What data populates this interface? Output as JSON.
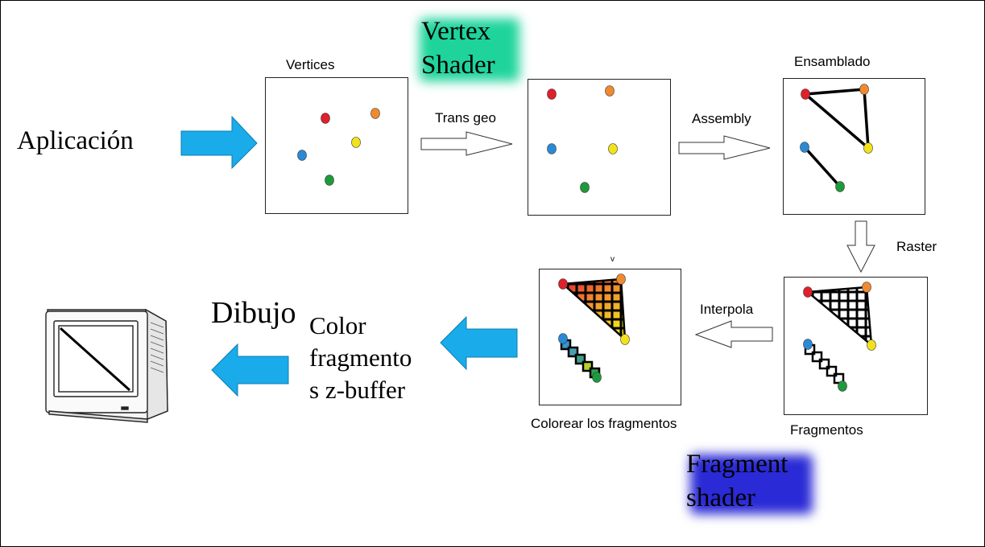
{
  "labels": {
    "aplicacion": "Aplicación",
    "vertices": "Vertices",
    "vertex_shader_line1": "Vertex",
    "vertex_shader_line2": "Shader",
    "trans_geo": "Trans geo",
    "assembly": "Assembly",
    "ensamblado": "Ensamblado",
    "raster": "Raster",
    "interpola": "Interpola",
    "fragmentos": "Fragmentos",
    "colorear": "Colorear los fragmentos",
    "tick_mark": "v",
    "fragment_shader_line1": "Fragment",
    "fragment_shader_line2": "shader",
    "dibujo": "Dibujo",
    "color_line1": "Color",
    "color_line2": "fragmento",
    "color_line3": "s z-buffer"
  },
  "colors": {
    "vertex_shader_highlight": "#1ed49a",
    "fragment_shader_highlight": "#2a2ad6",
    "arrow_blue": "#1aabea",
    "dot_red": "#e0202a",
    "dot_orange": "#f08a30",
    "dot_yellow": "#f2e21c",
    "dot_blue": "#2a8ad6",
    "dot_green": "#1e9a3c"
  },
  "icons": {
    "monitor": "crt-monitor-icon"
  }
}
